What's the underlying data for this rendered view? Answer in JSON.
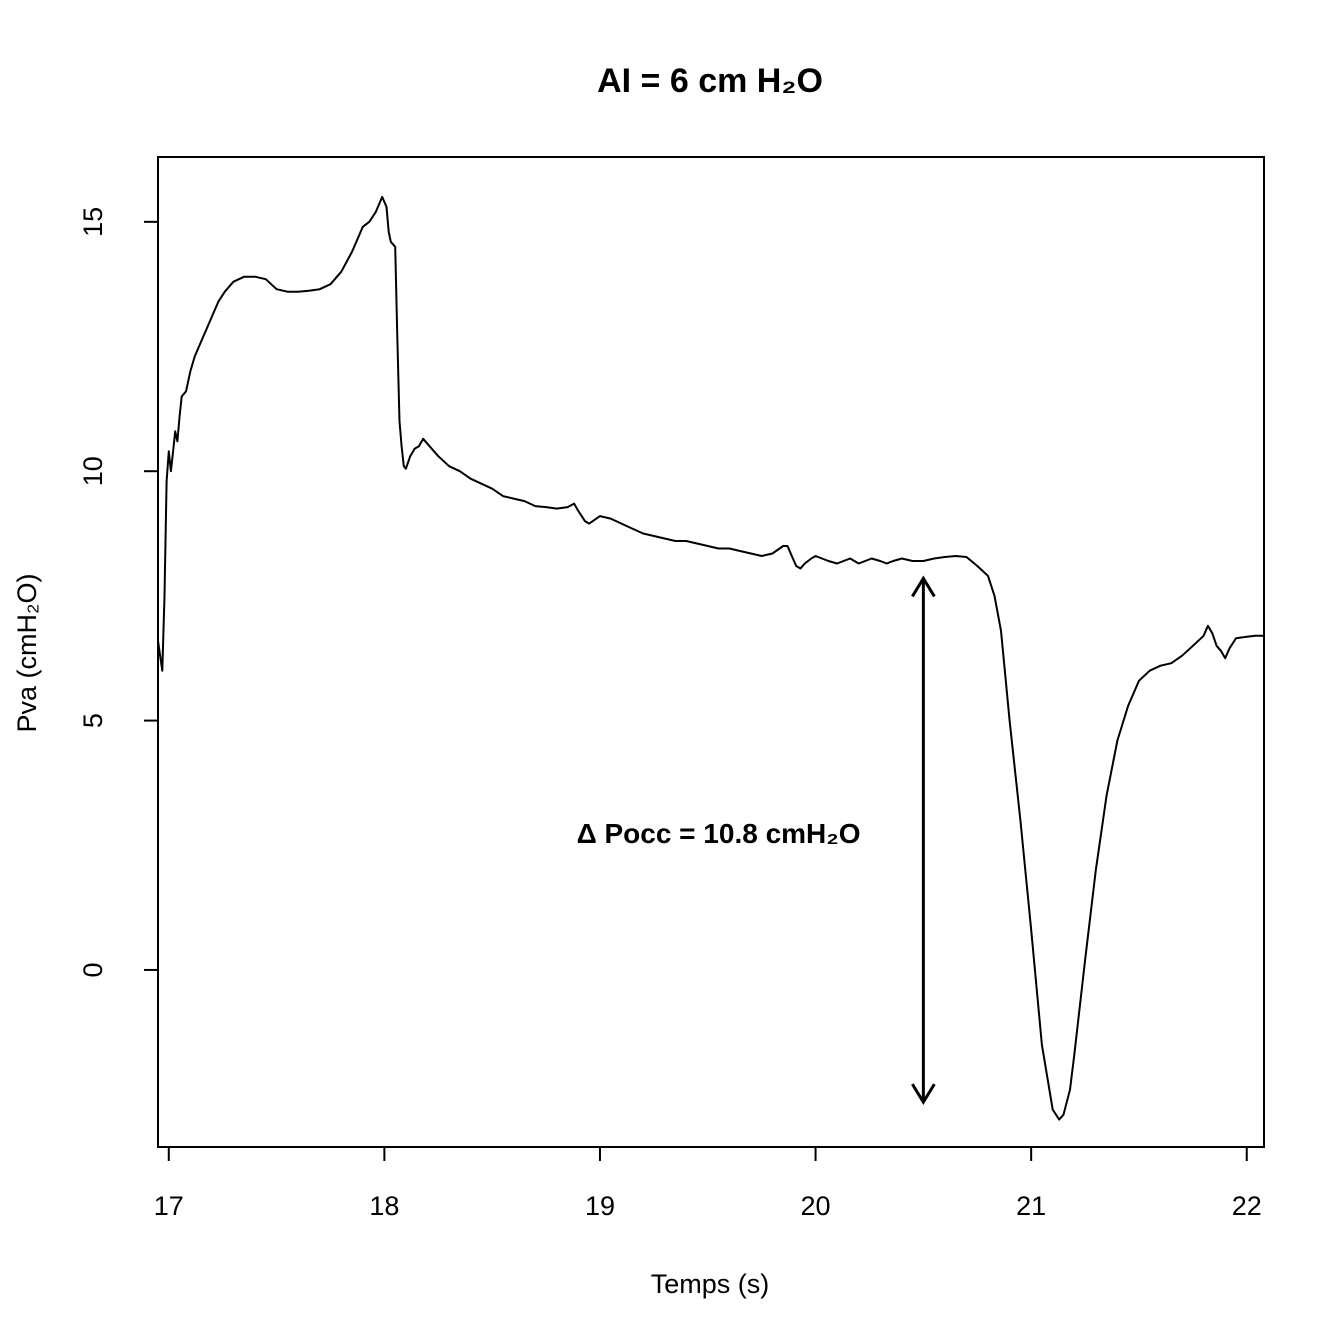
{
  "chart_data": {
    "type": "line",
    "title": "AI = 6 cm H₂O",
    "xlabel": "Temps (s)",
    "ylabel": "Pva (cmH₂O)",
    "xlim": [
      16.95,
      22.08
    ],
    "ylim": [
      -3.55,
      16.3
    ],
    "xticks": [
      17,
      18,
      19,
      20,
      21,
      22
    ],
    "yticks": [
      0,
      5,
      10,
      15
    ],
    "grid": false,
    "legend": "none",
    "series": [
      {
        "color": "#000000",
        "x": [
          16.95,
          16.97,
          16.98,
          16.99,
          17.0,
          17.01,
          17.02,
          17.03,
          17.04,
          17.05,
          17.06,
          17.08,
          17.1,
          17.12,
          17.14,
          17.16,
          17.18,
          17.2,
          17.23,
          17.26,
          17.3,
          17.35,
          17.4,
          17.45,
          17.5,
          17.55,
          17.6,
          17.65,
          17.7,
          17.75,
          17.8,
          17.85,
          17.9,
          17.93,
          17.96,
          17.99,
          18.01,
          18.02,
          18.03,
          18.05,
          18.06,
          18.07,
          18.08,
          18.09,
          18.1,
          18.12,
          18.14,
          18.16,
          18.18,
          18.2,
          18.22,
          18.25,
          18.3,
          18.35,
          18.4,
          18.45,
          18.5,
          18.55,
          18.6,
          18.65,
          18.7,
          18.75,
          18.8,
          18.85,
          18.88,
          18.9,
          18.93,
          18.95,
          19.0,
          19.05,
          19.1,
          19.15,
          19.2,
          19.25,
          19.3,
          19.35,
          19.4,
          19.45,
          19.5,
          19.55,
          19.6,
          19.65,
          19.7,
          19.75,
          19.8,
          19.85,
          19.87,
          19.89,
          19.91,
          19.93,
          19.95,
          19.98,
          20.0,
          20.03,
          20.06,
          20.1,
          20.13,
          20.16,
          20.2,
          20.23,
          20.26,
          20.3,
          20.33,
          20.36,
          20.4,
          20.45,
          20.5,
          20.55,
          20.6,
          20.65,
          20.7,
          20.75,
          20.8,
          20.83,
          20.86,
          20.9,
          20.95,
          21.0,
          21.05,
          21.1,
          21.13,
          21.15,
          21.18,
          21.2,
          21.25,
          21.3,
          21.35,
          21.4,
          21.45,
          21.5,
          21.55,
          21.6,
          21.65,
          21.7,
          21.75,
          21.8,
          21.82,
          21.84,
          21.86,
          21.88,
          21.9,
          21.92,
          21.95,
          22.0,
          22.04,
          22.08
        ],
        "y": [
          6.6,
          6.0,
          7.5,
          9.8,
          10.4,
          10.0,
          10.4,
          10.8,
          10.6,
          11.1,
          11.5,
          11.6,
          12.0,
          12.3,
          12.5,
          12.7,
          12.9,
          13.1,
          13.4,
          13.6,
          13.8,
          13.9,
          13.9,
          13.85,
          13.65,
          13.6,
          13.6,
          13.62,
          13.65,
          13.75,
          14.0,
          14.4,
          14.9,
          15.0,
          15.2,
          15.5,
          15.3,
          14.8,
          14.6,
          14.5,
          12.7,
          11.0,
          10.5,
          10.1,
          10.05,
          10.3,
          10.45,
          10.5,
          10.65,
          10.55,
          10.45,
          10.3,
          10.1,
          10.0,
          9.85,
          9.75,
          9.65,
          9.5,
          9.45,
          9.4,
          9.3,
          9.28,
          9.25,
          9.28,
          9.35,
          9.2,
          9.0,
          8.95,
          9.1,
          9.05,
          8.95,
          8.85,
          8.75,
          8.7,
          8.65,
          8.6,
          8.6,
          8.55,
          8.5,
          8.45,
          8.45,
          8.4,
          8.35,
          8.3,
          8.35,
          8.5,
          8.5,
          8.3,
          8.1,
          8.05,
          8.15,
          8.25,
          8.3,
          8.25,
          8.2,
          8.15,
          8.2,
          8.25,
          8.15,
          8.2,
          8.25,
          8.2,
          8.15,
          8.2,
          8.25,
          8.2,
          8.2,
          8.25,
          8.28,
          8.3,
          8.28,
          8.1,
          7.9,
          7.5,
          6.8,
          5.0,
          3.0,
          0.8,
          -1.5,
          -2.8,
          -3.0,
          -2.9,
          -2.4,
          -1.7,
          0.2,
          2.0,
          3.5,
          4.6,
          5.3,
          5.8,
          6.0,
          6.1,
          6.15,
          6.3,
          6.5,
          6.7,
          6.9,
          6.75,
          6.5,
          6.4,
          6.25,
          6.45,
          6.65,
          6.68,
          6.7,
          6.7
        ]
      }
    ],
    "annotations": [
      {
        "type": "double-arrow",
        "x": 20.5,
        "y_from": 7.85,
        "y_to": -2.65
      },
      {
        "type": "text",
        "text": "Δ Pocc = 10.8 cmH₂O",
        "x": 19.55,
        "y": 2.55
      }
    ]
  }
}
